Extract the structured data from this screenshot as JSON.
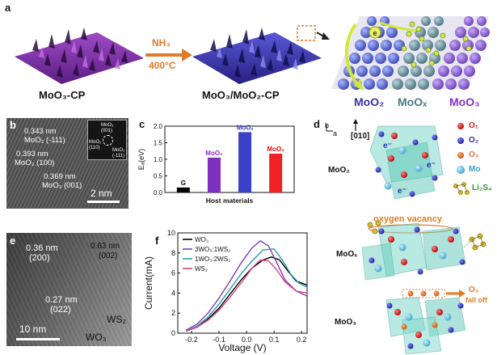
{
  "panel_a": {
    "letter": "a",
    "label_left": "MoO₃-CP",
    "label_mid": "MoO₃/MoO₂-CP",
    "arrow_top": "NH₃",
    "arrow_bottom": "400°C",
    "zone_labels": [
      "MoO₂",
      "MoOₓ",
      "MoO₃"
    ],
    "colors": {
      "purple": "#7a2f9e",
      "blue": "#3b34a8",
      "accent_orange": "#e07b2a",
      "zone_mox": "#4b7a8c"
    }
  },
  "panel_b": {
    "letter": "b",
    "labels": [
      "0.343 nm",
      "MoO₂ (-111)",
      "0.393 nm",
      "MoO₃ (100)",
      "0.369 nm",
      "MoO₃ (001)"
    ],
    "inset_labels": [
      "MoO₃",
      "(001)",
      "MoO₃",
      "(110)",
      "MoO₃",
      "(-111)"
    ],
    "scale_bar": "2 nm"
  },
  "panel_c": {
    "letter": "c",
    "chart_data": {
      "type": "bar",
      "categories": [
        "G",
        "MoO₂",
        "MoOₓ",
        "MoO₃"
      ],
      "values": [
        0.15,
        1.05,
        1.82,
        1.17
      ],
      "colors": [
        "#000000",
        "#7f2fc0",
        "#3a40c8",
        "#ee2222"
      ],
      "label_colors": [
        "#000000",
        "#8a2fc8",
        "#3a40c8",
        "#e01010"
      ],
      "ylabel": "Eₐ(eV)",
      "xlabel": "Host materials",
      "ylim": [
        0,
        2.0
      ],
      "yticks": [
        "0.0",
        "0.5",
        "1.0",
        "1.5",
        "2.0"
      ]
    }
  },
  "panel_d": {
    "letter": "d",
    "axis_b": "b",
    "axis_a": "a",
    "direction": "[010]",
    "legend": [
      "O₁",
      "O₂",
      "O₃",
      "Mo",
      "Li₂S₄"
    ],
    "legend_colors": [
      "#d81e1e",
      "#2b2fa8",
      "#e07030",
      "#6ac8e0",
      "#c8a020"
    ],
    "row_labels": [
      "MoO₂",
      "MoOₓ",
      "MoO₃"
    ],
    "oxygen_vacancy": "oxygen vacancy",
    "o3_fall": "O₃",
    "fall_off": "fall off",
    "electron": "e⁻"
  },
  "panel_e": {
    "letter": "e",
    "labels": [
      "0.36 nm",
      "(200)",
      "0.63 nm",
      "(002)",
      "0.27 nm",
      "(022)",
      "WO₃",
      "WS₂"
    ],
    "scale_bar": "10 nm"
  },
  "panel_f": {
    "letter": "f",
    "chart_data": {
      "type": "line",
      "xlabel": "Voltage (V)",
      "ylabel": "Current(mA)",
      "xlim": [
        -0.25,
        0.22
      ],
      "ylim": [
        0,
        10
      ],
      "xticks": [
        "-0.2",
        "-0.1",
        "0.0",
        "0.1",
        "0.2"
      ],
      "yticks": [
        "0",
        "2",
        "4",
        "6",
        "8",
        "10"
      ],
      "series": [
        {
          "name": "WO₃",
          "color": "#000000",
          "x": [
            -0.22,
            -0.18,
            -0.14,
            -0.1,
            -0.06,
            -0.02,
            0.02,
            0.06,
            0.09,
            0.12,
            0.15,
            0.18,
            0.22
          ],
          "y": [
            0.2,
            0.6,
            1.4,
            2.5,
            3.9,
            5.3,
            6.5,
            7.3,
            7.6,
            7.3,
            6.2,
            5.2,
            4.8
          ]
        },
        {
          "name": "3WO₃:1WS₂",
          "color": "#7a3fbf",
          "x": [
            -0.22,
            -0.18,
            -0.14,
            -0.1,
            -0.06,
            -0.02,
            0.02,
            0.05,
            0.08,
            0.11,
            0.14,
            0.18,
            0.22
          ],
          "y": [
            0.3,
            0.9,
            2.0,
            3.5,
            5.2,
            7.0,
            8.5,
            9.2,
            8.7,
            7.0,
            5.3,
            4.2,
            3.7
          ]
        },
        {
          "name": "1WO₃:2WS₂",
          "color": "#2a9aa8",
          "x": [
            -0.22,
            -0.18,
            -0.14,
            -0.1,
            -0.06,
            -0.02,
            0.02,
            0.06,
            0.1,
            0.13,
            0.16,
            0.19,
            0.22
          ],
          "y": [
            0.2,
            0.7,
            1.6,
            2.9,
            4.4,
            5.9,
            7.2,
            8.3,
            8.4,
            7.3,
            5.9,
            5.0,
            4.6
          ]
        },
        {
          "name": "WS₂",
          "color": "#e0407a",
          "x": [
            -0.22,
            -0.18,
            -0.14,
            -0.1,
            -0.06,
            -0.02,
            0.02,
            0.05,
            0.08,
            0.11,
            0.14,
            0.18,
            0.22
          ],
          "y": [
            0.2,
            0.6,
            1.3,
            2.3,
            3.6,
            5.0,
            6.5,
            7.3,
            7.2,
            6.3,
            5.1,
            4.2,
            4.0
          ]
        }
      ]
    }
  }
}
